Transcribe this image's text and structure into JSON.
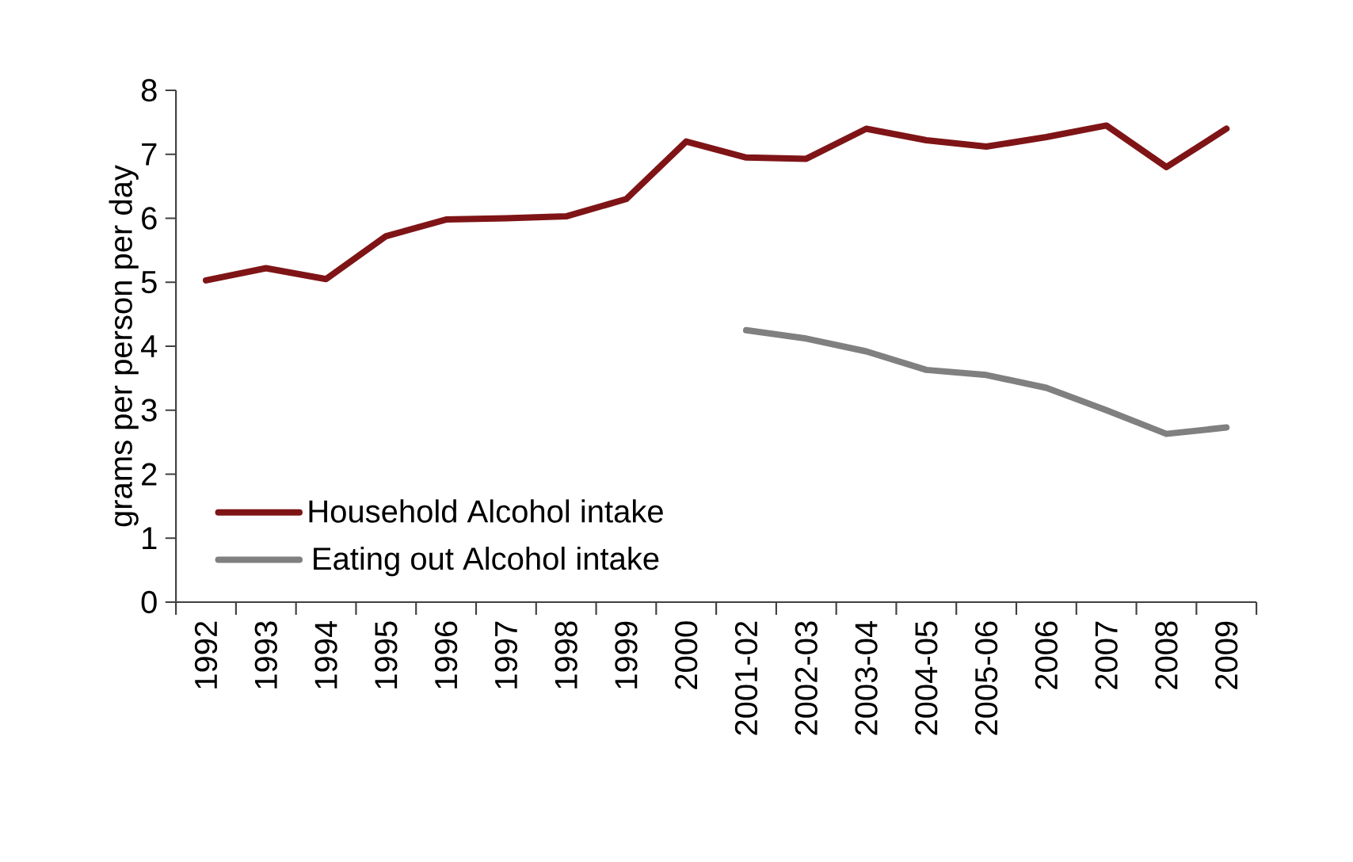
{
  "chart_data": {
    "type": "line",
    "ylabel": "grams per person per day",
    "categories": [
      "1992",
      "1993",
      "1994",
      "1995",
      "1996",
      "1997",
      "1998",
      "1999",
      "2000",
      "2001-02",
      "2002-03",
      "2003-04",
      "2004-05",
      "2005-06",
      "2006",
      "2007",
      "2008",
      "2009"
    ],
    "series": [
      {
        "name": "Household Alcohol intake",
        "color": "#7f1416",
        "values": [
          5.03,
          5.22,
          5.05,
          5.72,
          5.98,
          6.0,
          6.03,
          6.3,
          7.2,
          6.95,
          6.93,
          7.4,
          7.22,
          7.12,
          7.27,
          7.45,
          6.8,
          7.4
        ]
      },
      {
        "name": "Eating out Alcohol intake",
        "color": "#808080",
        "values": [
          null,
          null,
          null,
          null,
          null,
          null,
          null,
          null,
          null,
          4.25,
          4.12,
          3.92,
          3.63,
          3.55,
          3.35,
          3.0,
          2.63,
          2.73
        ]
      }
    ],
    "ylim": [
      0,
      8
    ],
    "yticks": [
      0,
      1,
      2,
      3,
      4,
      5,
      6,
      7,
      8
    ],
    "legend": "bottom left"
  }
}
